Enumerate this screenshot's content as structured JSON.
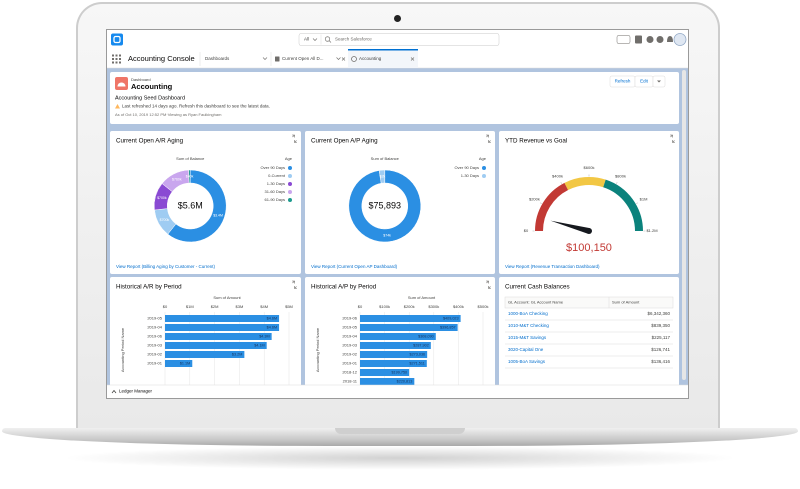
{
  "top_bar": {
    "search_scope": "All",
    "search_placeholder": "Search Salesforce"
  },
  "nav": {
    "app_name": "Accounting Console",
    "tabs": [
      "Dashboards",
      "Current Open All D...",
      "Accounting"
    ]
  },
  "dashboard": {
    "label": "Dashboard",
    "title": "Accounting",
    "subtitle": "Accounting Seed Dashboard",
    "warning": "Last refreshed 14 days ago. Refresh this dashboard to see the latest data.",
    "as_of": "As of Oct 10, 2019 12:52 PM·Viewing as Ryan Faulkingham",
    "buttons": [
      "Refresh",
      "Edit"
    ]
  },
  "chart_data": [
    {
      "type": "donut",
      "title": "Current Open A/R Aging",
      "measure_label": "Sum of Balance",
      "legend_title": "Age",
      "center_label": "$5.6M",
      "categories": [
        "Over 90 Days",
        "0-Current",
        "1-30 Days",
        "31-60 Days",
        "61-90 Days"
      ],
      "colors": [
        "#2b8fe3",
        "#9fccf2",
        "#8a4ad3",
        "#c9a6ee",
        "#1d9a8e"
      ],
      "values": [
        3400000,
        700000,
        700000,
        760000,
        40000
      ],
      "value_labels": [
        "$3.4M",
        "$700k",
        "$700k",
        "$760k",
        "$40k"
      ],
      "footer": "View Report (Billing Aging by Customer - Current)"
    },
    {
      "type": "donut",
      "title": "Current Open A/P Aging",
      "measure_label": "Sum of Balance",
      "legend_title": "Age",
      "center_label": "$75,893",
      "categories": [
        "Over 90 Days",
        "1-30 Days"
      ],
      "colors": [
        "#2b8fe3",
        "#9fccf2"
      ],
      "values": [
        74000,
        1893
      ],
      "value_labels": [
        "$74k",
        "$2k"
      ],
      "footer": "View Report (Current Open AP Dashboard)"
    },
    {
      "type": "gauge",
      "title": "YTD Revenue vs Goal",
      "value": 100150,
      "value_label": "$100,150",
      "ylim": [
        0,
        1200000
      ],
      "yticks": [
        {
          "value": 0,
          "label": "$0"
        },
        {
          "value": 200000,
          "label": "$200k"
        },
        {
          "value": 400000,
          "label": "$400k"
        },
        {
          "value": 600000,
          "label": "$600k"
        },
        {
          "value": 800000,
          "label": "$800k"
        },
        {
          "value": 1000000,
          "label": "$1M"
        },
        {
          "value": 1200000,
          "label": "$1.2M"
        }
      ],
      "bands": [
        {
          "from": 0,
          "to": 420000,
          "color": "#c23934"
        },
        {
          "from": 420000,
          "to": 720000,
          "color": "#f2c744"
        },
        {
          "from": 720000,
          "to": 1200000,
          "color": "#0b827c"
        }
      ],
      "footer": "View Report (Revenue Transaction Dashboard)"
    },
    {
      "type": "hbar",
      "title": "Historical A/R by Period",
      "x_label": "Sum of Amount",
      "y_label": "Accounting Period Name",
      "color": "#2b8fe3",
      "categories": [
        "2019-05",
        "2019-04",
        "2019-06",
        "2019-03",
        "2019-02",
        "2019-01"
      ],
      "values": [
        4600000,
        4600000,
        4300000,
        4100000,
        3200000,
        1100000
      ],
      "value_labels": [
        "$4.6M",
        "$4.6M",
        "$4.3M",
        "$4.1M",
        "$3.2M",
        "$1.1M"
      ],
      "xlim": [
        0,
        5000000
      ],
      "xticks": [
        {
          "value": 0,
          "label": "$0"
        },
        {
          "value": 1000000,
          "label": "$1M"
        },
        {
          "value": 2000000,
          "label": "$2M"
        },
        {
          "value": 3000000,
          "label": "$3M"
        },
        {
          "value": 4000000,
          "label": "$4M"
        },
        {
          "value": 5000000,
          "label": "$5M"
        }
      ]
    },
    {
      "type": "hbar",
      "title": "Historical A/P by Period",
      "x_label": "Sum of Amount",
      "y_label": "Accounting Period Name",
      "color": "#2b8fe3",
      "categories": [
        "2019-06",
        "2019-05",
        "2019-04",
        "2019-03",
        "2019-02",
        "2019-01",
        "2018-12",
        "2018-11"
      ],
      "values": [
        409023,
        396857,
        308090,
        287902,
        273036,
        271511,
        199750,
        220813
      ],
      "value_labels": [
        "$409,023",
        "$396,857",
        "$308,090",
        "$287,902",
        "$273,036",
        "$271,511",
        "$199,750",
        "$220,813"
      ],
      "xlim": [
        0,
        500000
      ],
      "xticks": [
        {
          "value": 0,
          "label": "$0"
        },
        {
          "value": 100000,
          "label": "$100k"
        },
        {
          "value": 200000,
          "label": "$200k"
        },
        {
          "value": 300000,
          "label": "$300k"
        },
        {
          "value": 400000,
          "label": "$400k"
        },
        {
          "value": 500000,
          "label": "$500k"
        }
      ]
    }
  ],
  "cash_table": {
    "title": "Current Cash Balances",
    "headers": [
      "GL Account: GL Account Name",
      "Sum of Amount"
    ],
    "rows": [
      [
        "1000-BoA Checking",
        "$6,342,360"
      ],
      [
        "1010-M&T Checking",
        "$839,350"
      ],
      [
        "1015-M&T Savings",
        "$225,117"
      ],
      [
        "3020-Capital One",
        "$126,741"
      ],
      [
        "1005-BoA Savings",
        "$136,416"
      ]
    ]
  },
  "utility_bar": {
    "label": "Ledger Manager"
  }
}
